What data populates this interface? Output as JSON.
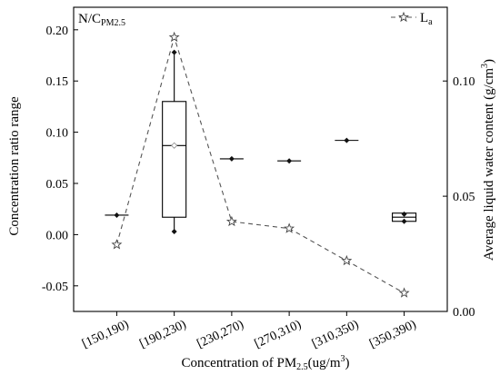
{
  "chart_data": {
    "type": "box",
    "title": "",
    "panel_label": {
      "main": "N/C",
      "sub": "PM2.5"
    },
    "xlabel": {
      "main": "Concentration of PM",
      "sub": "2.5",
      "rest": "(ug/m",
      "sup": "3",
      "end": ")"
    },
    "ylabel_left": "Concentration ratio range",
    "ylabel_right": {
      "main": "Average liquid water content (g/cm",
      "sup": "3",
      "end": ")"
    },
    "categories": [
      "[150,190)",
      "[190,230)",
      "[230,270)",
      "[270,310)",
      "[310,350)",
      "[350,390)"
    ],
    "y_left": {
      "lim": [
        -0.075,
        0.222
      ],
      "ticks": [
        -0.05,
        0.0,
        0.05,
        0.1,
        0.15,
        0.2
      ],
      "tick_labels": [
        "-0.05",
        "0.00",
        "0.05",
        "0.10",
        "0.15",
        "0.20"
      ]
    },
    "y_right": {
      "lim": [
        0.0,
        0.132
      ],
      "ticks": [
        0.0,
        0.05,
        0.1
      ],
      "tick_labels": [
        "0.00",
        "0.05",
        "0.10"
      ]
    },
    "boxes": [
      {
        "category": "[150,190)",
        "points": [
          0.019
        ],
        "median": 0.019
      },
      {
        "category": "[190,230)",
        "q1": 0.017,
        "median": 0.087,
        "q3": 0.13,
        "whisker_low": 0.003,
        "whisker_high": 0.178,
        "mean": 0.087,
        "points": [
          0.178,
          0.003
        ]
      },
      {
        "category": "[230,270)",
        "points": [
          0.074
        ],
        "median": 0.074
      },
      {
        "category": "[270,310)",
        "points": [
          0.072
        ],
        "median": 0.072
      },
      {
        "category": "[310,350)",
        "points": [
          0.092
        ],
        "median": 0.092
      },
      {
        "category": "[350,390)",
        "q1": 0.013,
        "median": 0.017,
        "q3": 0.021,
        "points": [
          0.02,
          0.013
        ]
      }
    ],
    "series": [
      {
        "name": "L",
        "name_sub": "a",
        "axis": "right",
        "style": "dashed-star",
        "values": [
          0.029,
          0.119,
          0.039,
          0.036,
          0.022,
          0.008
        ]
      }
    ],
    "legend_position": "top-right",
    "grid": false
  }
}
